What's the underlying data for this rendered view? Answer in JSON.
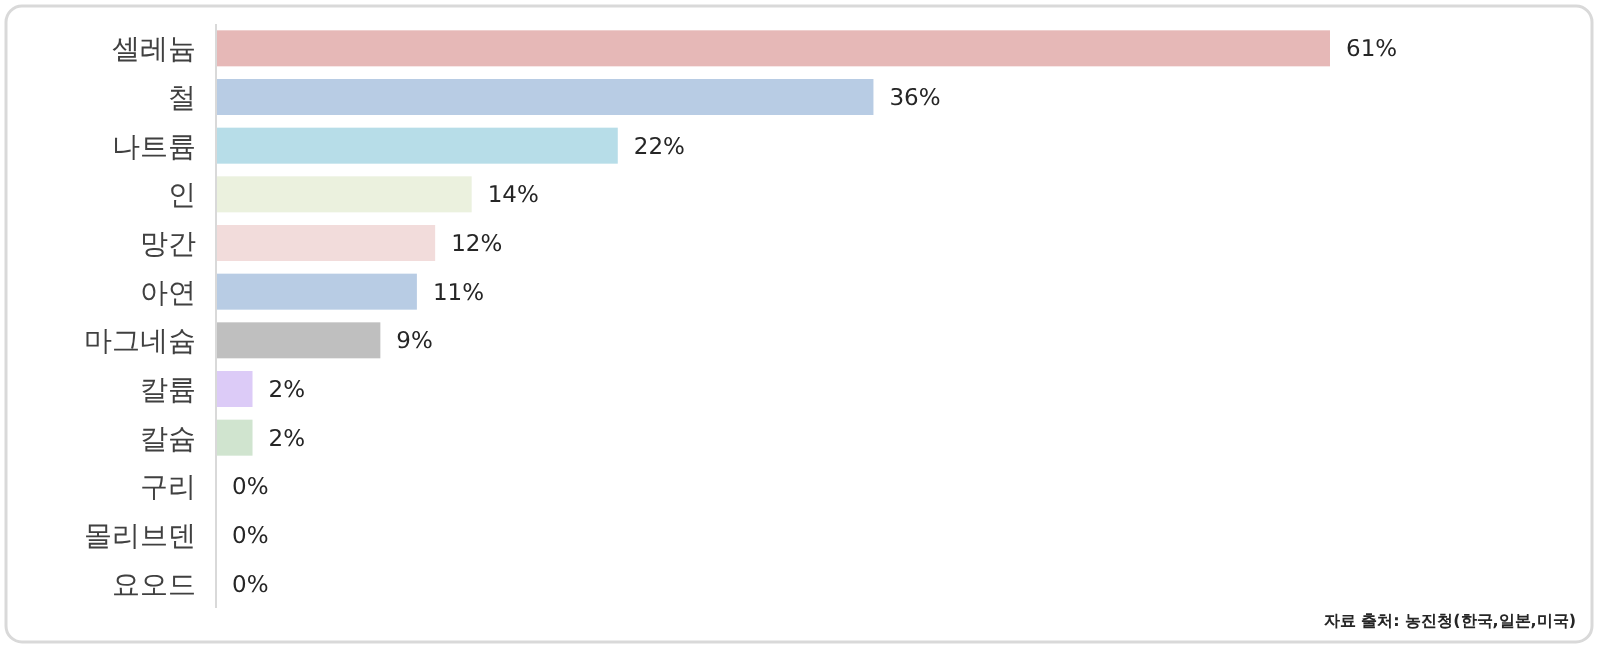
{
  "chart_data": {
    "type": "bar",
    "orientation": "horizontal",
    "categories": [
      "셀레늄",
      "철",
      "나트륨",
      "인",
      "망간",
      "아연",
      "마그네슘",
      "칼륨",
      "칼슘",
      "구리",
      "몰리브덴",
      "요오드"
    ],
    "values": [
      61,
      36,
      22,
      14,
      12,
      11,
      9,
      2,
      2,
      0,
      0,
      0
    ],
    "value_labels": [
      "61%",
      "36%",
      "22%",
      "14%",
      "12%",
      "11%",
      "9%",
      "2%",
      "2%",
      "0%",
      "0%",
      "0%"
    ],
    "colors": [
      "#e6b8b7",
      "#b8cce4",
      "#b7dde8",
      "#ebf1de",
      "#f2dcdb",
      "#b8cce4",
      "#bfbfbf",
      "#dccbf7",
      "#d0e4cf",
      "#4f6fa8",
      "#b8cce4",
      "#b8cce4"
    ],
    "annotations": [
      "자료 출처: 농진청(한국,일본,미국)"
    ]
  }
}
